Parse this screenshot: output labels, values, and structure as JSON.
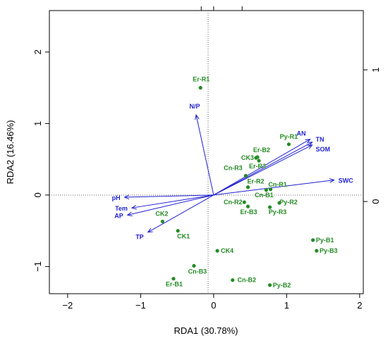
{
  "chart_data": {
    "type": "scatter",
    "subtype": "rda-biplot",
    "xlabel": "RDA1 (30.78%)",
    "ylabel": "RDA2 (16.46%)",
    "xlim": [
      -2.25,
      2.05
    ],
    "ylim": [
      -1.38,
      2.58
    ],
    "x_ticks": [
      -2,
      -1,
      0,
      1,
      2
    ],
    "y_ticks": [
      -1,
      0,
      1,
      2
    ],
    "top_ticks": [
      -0.17,
      0.0,
      0.39
    ],
    "right_axis": {
      "ticks": [
        0,
        1
      ],
      "ylim": [
        -0.7,
        1.45
      ]
    },
    "zero_lines": "dotted",
    "sample_color": "#228B22",
    "vector_color": "#1f1fd2",
    "samples": [
      {
        "label": "Er-R1",
        "x": -0.18,
        "y": 1.5
      },
      {
        "label": "Er-B2",
        "x": 0.6,
        "y": 0.53
      },
      {
        "label": "CK3",
        "x": 0.58,
        "y": 0.52
      },
      {
        "label": "Er-R3",
        "x": 0.62,
        "y": 0.48
      },
      {
        "label": "Py-R1",
        "x": 1.03,
        "y": 0.71
      },
      {
        "label": "Cn-R3",
        "x": 0.44,
        "y": 0.27
      },
      {
        "label": "Er-R2",
        "x": 0.47,
        "y": 0.11
      },
      {
        "label": "Cn-R1",
        "x": 0.78,
        "y": 0.08
      },
      {
        "label": "Cn-B1",
        "x": 0.72,
        "y": 0.07
      },
      {
        "label": "Cn-R2",
        "x": 0.42,
        "y": -0.1
      },
      {
        "label": "Er-B3",
        "x": 0.47,
        "y": -0.16
      },
      {
        "label": "Py-R2",
        "x": 0.9,
        "y": -0.11
      },
      {
        "label": "Py-R3",
        "x": 0.77,
        "y": -0.17
      },
      {
        "label": "CK2",
        "x": -0.7,
        "y": -0.37
      },
      {
        "label": "CK1",
        "x": -0.49,
        "y": -0.5
      },
      {
        "label": "CK4",
        "x": 0.05,
        "y": -0.78
      },
      {
        "label": "Py-B1",
        "x": 1.36,
        "y": -0.63
      },
      {
        "label": "Py-B3",
        "x": 1.41,
        "y": -0.78
      },
      {
        "label": "Cn-B3",
        "x": -0.27,
        "y": -0.99
      },
      {
        "label": "Er-B1",
        "x": -0.55,
        "y": -1.17
      },
      {
        "label": "Cn-B2",
        "x": 0.26,
        "y": -1.19
      },
      {
        "label": "Py-B2",
        "x": 0.77,
        "y": -1.26
      }
    ],
    "vectors": [
      {
        "label": "N/P",
        "x": -0.24,
        "y": 1.12
      },
      {
        "label": "AN",
        "x": 1.32,
        "y": 0.78
      },
      {
        "label": "TN",
        "x": 1.35,
        "y": 0.74
      },
      {
        "label": "SOM",
        "x": 1.35,
        "y": 0.7
      },
      {
        "label": "SWC",
        "x": 1.65,
        "y": 0.21
      },
      {
        "label": "pH",
        "x": -1.22,
        "y": -0.03
      },
      {
        "label": "Tem",
        "x": -1.12,
        "y": -0.18
      },
      {
        "label": "AP",
        "x": -1.18,
        "y": -0.28
      },
      {
        "label": "TP",
        "x": -0.9,
        "y": -0.52
      }
    ]
  }
}
